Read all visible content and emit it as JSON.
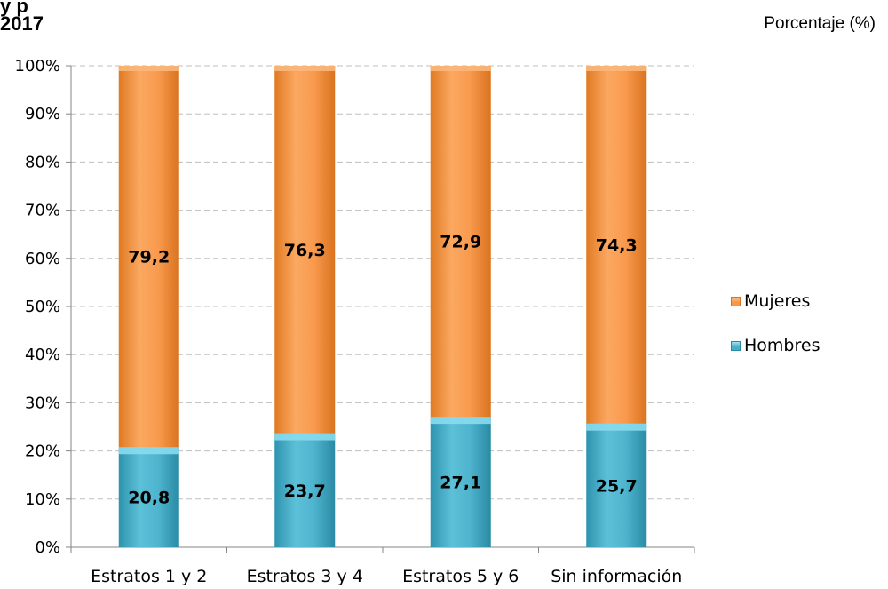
{
  "header": {
    "title_fragment": "y p",
    "year": "2017",
    "unit": "Porcentaje (%)"
  },
  "colors": {
    "mujeres": "#F79646",
    "mujeres_light": "#FAB77A",
    "hombres": "#4BACC6",
    "hombres_light": "#8ADCEE",
    "grid": "#BFBFBF"
  },
  "chart_data": {
    "type": "bar",
    "stacked": true,
    "categories": [
      "Estratos 1 y 2",
      "Estratos 3 y 4",
      "Estratos 5 y 6",
      "Sin información"
    ],
    "series": [
      {
        "name": "Hombres",
        "values": [
          20.8,
          23.7,
          27.1,
          25.7
        ]
      },
      {
        "name": "Mujeres",
        "values": [
          79.2,
          76.3,
          72.9,
          74.3
        ]
      }
    ],
    "data_labels": {
      "Hombres": [
        "20,8",
        "23,7",
        "27,1",
        "25,7"
      ],
      "Mujeres": [
        "79,2",
        "76,3",
        "72,9",
        "74,3"
      ]
    },
    "yticks": [
      "0%",
      "10%",
      "20%",
      "30%",
      "40%",
      "50%",
      "60%",
      "70%",
      "80%",
      "90%",
      "100%"
    ],
    "ylim": [
      0,
      100
    ],
    "grid": true,
    "legend": {
      "position": "right",
      "entries": [
        "Mujeres",
        "Hombres"
      ]
    }
  }
}
